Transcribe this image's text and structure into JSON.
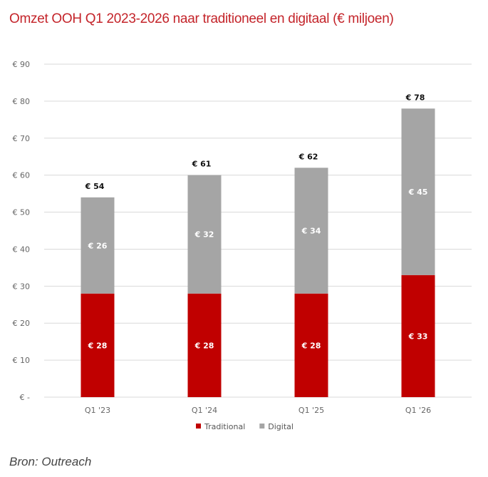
{
  "title": "Omzet OOH Q1 2023-2026 naar traditioneel en digitaal (€ miljoen)",
  "source": "Bron: Outreach",
  "chart_data": {
    "type": "bar",
    "stacked": true,
    "title": "Omzet OOH Q1 2023-2026 naar traditioneel en digitaal (€ miljoen)",
    "xlabel": "",
    "ylabel": "",
    "categories": [
      "Q1 '23",
      "Q1 '24",
      "Q1 '25",
      "Q1 '26"
    ],
    "series": [
      {
        "name": "Traditional",
        "color": "#c00000",
        "values": [
          28,
          28,
          28,
          33
        ],
        "labels": [
          "€ 28",
          "€ 28",
          "€ 28",
          "€ 33"
        ]
      },
      {
        "name": "Digital",
        "color": "#a5a5a5",
        "values": [
          26,
          32,
          34,
          45
        ],
        "labels": [
          "€ 26",
          "€ 32",
          "€ 34",
          "€ 45"
        ]
      }
    ],
    "totals": [
      54,
      61,
      62,
      78
    ],
    "total_labels": [
      "€ 54",
      "€ 61",
      "€ 62",
      "€ 78"
    ],
    "ylim": [
      0,
      90
    ],
    "yticks": [
      0,
      10,
      20,
      30,
      40,
      50,
      60,
      70,
      80,
      90
    ],
    "ytick_labels": [
      "€ -",
      "€ 10",
      "€ 20",
      "€ 30",
      "€ 40",
      "€ 50",
      "€ 60",
      "€ 70",
      "€ 80",
      "€ 90"
    ],
    "grid": true,
    "legend": "bottom-center",
    "gridline_color": "#d9d9d9"
  }
}
